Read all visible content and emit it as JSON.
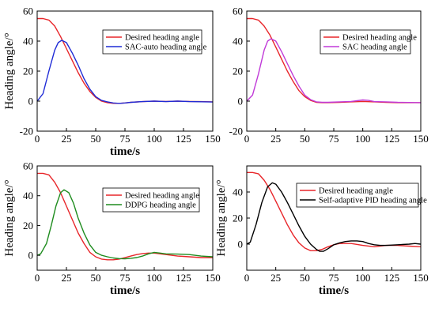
{
  "chart_data": [
    {
      "type": "line",
      "title": "",
      "xlabel": "time/s",
      "ylabel": "Heading angle/°",
      "xlim": [
        0,
        150
      ],
      "ylim": [
        -20,
        60
      ],
      "xticks": [
        0,
        25,
        50,
        75,
        100,
        125,
        150
      ],
      "yticks": [
        -20,
        0,
        20,
        40,
        60
      ],
      "grid": false,
      "legend_position": "top-right",
      "series": [
        {
          "name": "Desired heading angle",
          "color": "#e8262a",
          "x": [
            0,
            5,
            10,
            15,
            20,
            25,
            30,
            35,
            40,
            45,
            50,
            55,
            60,
            65,
            70,
            75,
            80,
            90,
            100,
            110,
            120,
            130,
            140,
            150
          ],
          "y": [
            55,
            55,
            54,
            50,
            43,
            35,
            27,
            19,
            12,
            6.5,
            2.5,
            0,
            -1,
            -1.5,
            -1.5,
            -1.2,
            -0.8,
            -0.3,
            0,
            -0.2,
            0,
            -0.2,
            -0.3,
            -0.5
          ]
        },
        {
          "name": "SAC-auto heading angle",
          "color": "#1f2bd6",
          "x": [
            0,
            5,
            10,
            15,
            18,
            21,
            25,
            30,
            35,
            40,
            45,
            50,
            55,
            60,
            65,
            70,
            75,
            80,
            90,
            100,
            110,
            120,
            130,
            140,
            150
          ],
          "y": [
            0,
            5,
            20,
            34,
            39,
            40.5,
            39,
            32,
            24,
            15,
            8,
            3,
            0.5,
            -0.5,
            -1.2,
            -1.5,
            -1.2,
            -0.8,
            -0.3,
            0,
            -0.3,
            0,
            -0.3,
            -0.4,
            -0.6
          ]
        }
      ]
    },
    {
      "type": "line",
      "title": "",
      "xlabel": "",
      "ylabel": "",
      "xlim": [
        0,
        150
      ],
      "ylim": [
        -20,
        60
      ],
      "xticks": [
        0,
        25,
        50,
        75,
        100,
        125,
        150
      ],
      "yticks": [
        -20,
        0,
        20,
        40,
        60
      ],
      "grid": false,
      "legend_position": "top-right",
      "series": [
        {
          "name": "Desired heading angle",
          "color": "#e8262a",
          "x": [
            0,
            5,
            10,
            15,
            20,
            25,
            30,
            35,
            40,
            45,
            50,
            55,
            60,
            65,
            70,
            80,
            90,
            100,
            110,
            120,
            130,
            140,
            150
          ],
          "y": [
            55,
            55,
            54,
            50,
            44,
            36,
            28,
            20,
            13,
            7,
            3,
            0.5,
            -0.8,
            -1,
            -1,
            -0.8,
            -0.5,
            -0.2,
            -0.5,
            -0.8,
            -1,
            -1,
            -1
          ]
        },
        {
          "name": "SAC heading angle",
          "color": "#c03ad8",
          "x": [
            0,
            5,
            10,
            15,
            18,
            21,
            25,
            30,
            35,
            40,
            45,
            50,
            55,
            60,
            65,
            70,
            80,
            90,
            100,
            105,
            110,
            120,
            130,
            140,
            150
          ],
          "y": [
            0,
            4,
            18,
            34,
            40,
            41.5,
            40,
            33,
            25,
            17,
            10,
            4,
            1,
            -0.5,
            -0.8,
            -0.8,
            -0.5,
            -0.2,
            0.8,
            0.5,
            -0.3,
            -0.5,
            -0.8,
            -0.9,
            -1
          ]
        }
      ]
    },
    {
      "type": "line",
      "title": "",
      "xlabel": "time/s",
      "ylabel": "Heading angle/°",
      "xlim": [
        0,
        150
      ],
      "ylim": [
        -10,
        60
      ],
      "xticks": [
        0,
        25,
        50,
        75,
        100,
        125,
        150
      ],
      "yticks": [
        0,
        20,
        40,
        60
      ],
      "grid": false,
      "legend_position": "top-right",
      "series": [
        {
          "name": "Desired heading angle",
          "color": "#e8262a",
          "x": [
            0,
            5,
            10,
            15,
            20,
            25,
            30,
            35,
            40,
            45,
            50,
            55,
            60,
            65,
            70,
            75,
            80,
            85,
            90,
            95,
            100,
            110,
            120,
            130,
            140,
            150
          ],
          "y": [
            55,
            55,
            54,
            49,
            42,
            33,
            24,
            15,
            8,
            2,
            -1,
            -2.5,
            -3,
            -3,
            -2.5,
            -1.5,
            -0.5,
            0.5,
            1.2,
            1.5,
            1.5,
            0.5,
            -0.5,
            -1,
            -1.5,
            -1.5
          ]
        },
        {
          "name": "DDPG heading angle",
          "color": "#1e8c1e",
          "x": [
            0,
            3,
            8,
            12,
            16,
            20,
            23,
            27,
            31,
            35,
            40,
            45,
            50,
            55,
            60,
            65,
            70,
            75,
            80,
            85,
            90,
            95,
            100,
            105,
            110,
            120,
            130,
            140,
            150
          ],
          "y": [
            0,
            1,
            8,
            20,
            33,
            42,
            44,
            42,
            35,
            25,
            15,
            7,
            2,
            0,
            -1,
            -1.8,
            -2.2,
            -2.3,
            -2,
            -1.5,
            -0.5,
            1,
            2,
            1.5,
            1,
            0.8,
            0.5,
            -0.5,
            -1
          ]
        }
      ]
    },
    {
      "type": "line",
      "title": "",
      "xlabel": "time/s",
      "ylabel": "Heading angle/°",
      "xlim": [
        0,
        150
      ],
      "ylim": [
        -20,
        60
      ],
      "xticks": [
        0,
        25,
        50,
        75,
        100,
        125,
        150
      ],
      "yticks": [
        0,
        20,
        40
      ],
      "grid": false,
      "legend_position": "top-right",
      "series": [
        {
          "name": "Desired heading angle",
          "color": "#e8262a",
          "x": [
            0,
            5,
            10,
            15,
            20,
            25,
            30,
            35,
            40,
            45,
            50,
            55,
            60,
            65,
            70,
            75,
            80,
            90,
            100,
            110,
            120,
            130,
            140,
            150
          ],
          "y": [
            55,
            55,
            54,
            49,
            42,
            33,
            24,
            15,
            7,
            1,
            -3,
            -5,
            -5,
            -4,
            -2,
            -0.5,
            0.5,
            0.5,
            -1,
            -2,
            -1,
            -1,
            -1.5,
            -2
          ]
        },
        {
          "name": "Self-adaptive PID  heading angle",
          "color": "#000000",
          "x": [
            0,
            3,
            8,
            13,
            18,
            22,
            25,
            30,
            35,
            40,
            45,
            50,
            55,
            60,
            63,
            66,
            70,
            75,
            80,
            85,
            90,
            95,
            100,
            105,
            110,
            115,
            120,
            130,
            140,
            145,
            150
          ],
          "y": [
            0,
            1.5,
            15,
            32,
            44,
            47,
            46,
            40,
            32,
            23,
            14,
            6,
            0,
            -4,
            -5.5,
            -5.5,
            -3.5,
            -0.5,
            1,
            2,
            2.5,
            2.5,
            2,
            0.5,
            -0.5,
            -1,
            -1,
            -0.5,
            0,
            0.5,
            0
          ]
        }
      ]
    }
  ]
}
